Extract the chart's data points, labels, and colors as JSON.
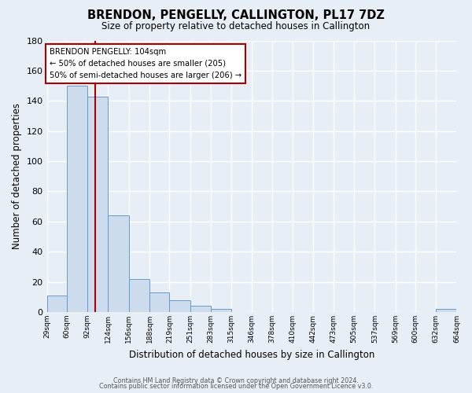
{
  "title": "BRENDON, PENGELLY, CALLINGTON, PL17 7DZ",
  "subtitle": "Size of property relative to detached houses in Callington",
  "xlabel": "Distribution of detached houses by size in Callington",
  "ylabel": "Number of detached properties",
  "bar_color": "#cddcec",
  "bar_edge_color": "#6699cc",
  "bg_color": "#e8eef6",
  "grid_color": "#ffffff",
  "bin_edges": [
    29,
    60,
    92,
    124,
    156,
    188,
    219,
    251,
    283,
    315,
    346,
    378,
    410,
    442,
    473,
    505,
    537,
    569,
    600,
    632,
    664
  ],
  "bar_heights": [
    11,
    150,
    143,
    64,
    22,
    13,
    8,
    4,
    2,
    0,
    0,
    0,
    0,
    0,
    0,
    0,
    0,
    0,
    0,
    2
  ],
  "red_line_x": 104,
  "red_line_color": "#aa0000",
  "annotation_title": "BRENDON PENGELLY: 104sqm",
  "annotation_line1": "← 50% of detached houses are smaller (205)",
  "annotation_line2": "50% of semi-detached houses are larger (206) →",
  "ylim": [
    0,
    180
  ],
  "yticks": [
    0,
    20,
    40,
    60,
    80,
    100,
    120,
    140,
    160,
    180
  ],
  "footer1": "Contains HM Land Registry data © Crown copyright and database right 2024.",
  "footer2": "Contains public sector information licensed under the Open Government Licence v3.0."
}
